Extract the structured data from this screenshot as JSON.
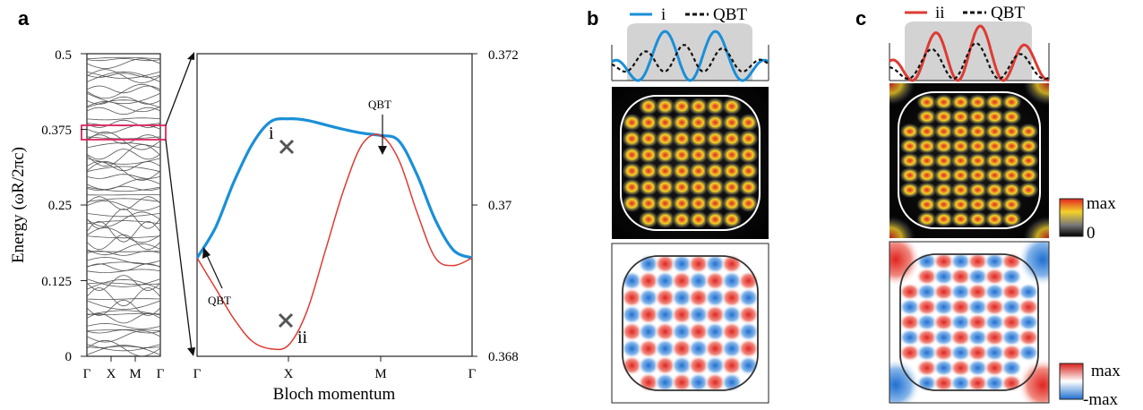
{
  "panels": {
    "a": "a",
    "b": "b",
    "c": "c"
  },
  "chart_data": [
    {
      "type": "line",
      "panel": "a-left",
      "ylabel": "Energy (ωR/2πc)",
      "yticks": [
        "0.5",
        "0.375",
        "0.25",
        "0.125",
        "0"
      ],
      "ylim": [
        0,
        0.5
      ],
      "xticks": [
        "Γ",
        "X",
        "M",
        "Γ"
      ],
      "highlight_range": [
        0.368,
        0.372
      ],
      "bands_shown": "dense set of photonic bands from 0 to 0.5"
    },
    {
      "type": "line",
      "panel": "a-right",
      "xlabel": "Bloch momentum",
      "xticks": [
        "Γ",
        "X",
        "M",
        "Γ"
      ],
      "yticks": [
        "0.372",
        "0.37",
        "0.368"
      ],
      "ylim": [
        0.368,
        0.372
      ],
      "series": [
        {
          "color": "#1a8fd8",
          "x": [
            0,
            0.2,
            0.4,
            0.6,
            0.8,
            1.0,
            1.2,
            1.4,
            1.6,
            1.8,
            2.0,
            2.2,
            2.4,
            2.6,
            2.8,
            3.0
          ],
          "values": [
            0.3693,
            0.3697,
            0.3703,
            0.3708,
            0.3711,
            0.37114,
            0.37112,
            0.37106,
            0.371,
            0.37095,
            0.37092,
            0.37085,
            0.3704,
            0.3698,
            0.3694,
            0.3693
          ]
        },
        {
          "color": "#dd3b33",
          "x": [
            0,
            0.2,
            0.4,
            0.6,
            0.8,
            1.0,
            1.2,
            1.4,
            1.6,
            1.8,
            2.0,
            2.2,
            2.4,
            2.6,
            2.8,
            3.0
          ],
          "values": [
            0.3693,
            0.3689,
            0.3685,
            0.3682,
            0.3681,
            0.36815,
            0.3686,
            0.3694,
            0.3702,
            0.3708,
            0.37092,
            0.3706,
            0.3699,
            0.3693,
            0.3692,
            0.3693
          ]
        }
      ],
      "annotations": {
        "i": "i",
        "ii": "ii",
        "qbt_top": "QBT",
        "qbt_left": "QBT"
      }
    },
    {
      "type": "line",
      "panel": "b-top",
      "series": [
        {
          "name": "i",
          "color": "#1a8fd8",
          "style": "solid"
        },
        {
          "name": "QBT",
          "color": "#111111",
          "style": "dashed"
        }
      ]
    },
    {
      "type": "line",
      "panel": "c-top",
      "series": [
        {
          "name": "ii",
          "color": "#dd3b33",
          "style": "solid"
        },
        {
          "name": "QBT",
          "color": "#111111",
          "style": "dashed"
        }
      ]
    },
    {
      "type": "heatmap",
      "panel": "colorbars",
      "intensity_scale": {
        "max": "max",
        "min": "0"
      },
      "field_scale": {
        "max": "max",
        "min": "-max"
      }
    }
  ]
}
